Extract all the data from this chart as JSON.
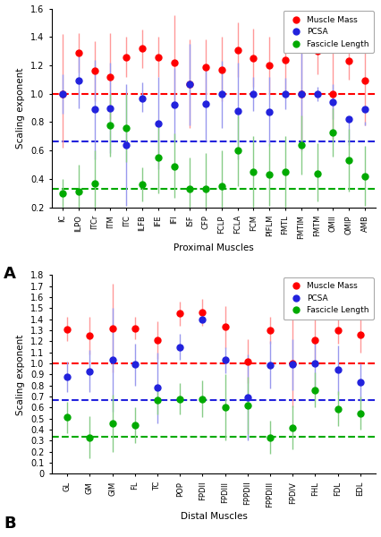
{
  "panel_A": {
    "xlabel": "Proximal Muscles",
    "ylabel": "Scaling exponent",
    "ylim": [
      0.2,
      1.6
    ],
    "yticks": [
      0.2,
      0.4,
      0.6,
      0.8,
      1.0,
      1.2,
      1.4,
      1.6
    ],
    "ytick_labels": [
      "0.2",
      "0.4",
      "0.6",
      "0.8",
      "1.0",
      "1.2",
      "1.4",
      "1.6"
    ],
    "label": "A",
    "categories": [
      "IC",
      "ILPO",
      "ITCr",
      "ITM",
      "ITC",
      "ILFB",
      "IFE",
      "IFI",
      "ISF",
      "CFP",
      "FCLP",
      "FCLA",
      "FCM",
      "PIFLM",
      "FMTL",
      "FMTIM",
      "FMTM",
      "OMII",
      "OMIP",
      "AMB"
    ],
    "red_mean": [
      1.0,
      1.29,
      1.16,
      1.12,
      1.26,
      1.32,
      1.26,
      1.22,
      1.07,
      1.19,
      1.17,
      1.31,
      1.25,
      1.2,
      1.24,
      1.0,
      1.3,
      1.0,
      1.23,
      1.09
    ],
    "red_upper": [
      1.42,
      1.43,
      1.37,
      1.43,
      1.4,
      1.45,
      1.4,
      1.55,
      1.38,
      1.38,
      1.4,
      1.5,
      1.46,
      1.4,
      1.52,
      1.42,
      1.47,
      1.35,
      1.37,
      1.4
    ],
    "red_lower": [
      0.62,
      1.15,
      0.95,
      0.82,
      1.12,
      1.18,
      1.12,
      0.9,
      0.76,
      1.0,
      0.95,
      1.12,
      1.05,
      1.0,
      0.97,
      0.6,
      1.14,
      0.68,
      1.1,
      0.78
    ],
    "blue_mean": [
      1.0,
      1.09,
      0.89,
      0.9,
      0.64,
      0.97,
      0.79,
      0.92,
      1.07,
      0.93,
      1.0,
      0.88,
      1.0,
      0.87,
      1.0,
      1.0,
      1.0,
      0.94,
      0.82,
      0.89
    ],
    "blue_upper": [
      1.14,
      1.28,
      1.24,
      1.22,
      1.07,
      1.08,
      1.12,
      1.18,
      1.35,
      1.2,
      1.23,
      1.22,
      1.12,
      1.12,
      1.11,
      1.42,
      1.05,
      1.07,
      0.8,
      0.8
    ],
    "blue_lower": [
      0.86,
      0.9,
      0.54,
      0.58,
      0.21,
      0.87,
      0.47,
      0.66,
      0.78,
      0.67,
      0.76,
      0.54,
      0.88,
      0.63,
      0.89,
      0.6,
      0.95,
      0.82,
      0.64,
      0.78
    ],
    "green_mean": [
      0.3,
      0.31,
      0.37,
      0.78,
      0.76,
      0.36,
      0.55,
      0.49,
      0.33,
      0.33,
      0.35,
      0.6,
      0.45,
      0.43,
      0.45,
      0.64,
      0.44,
      0.73,
      0.53,
      0.42
    ],
    "green_upper": [
      0.4,
      0.5,
      0.6,
      1.0,
      1.0,
      0.48,
      0.8,
      0.72,
      0.55,
      0.58,
      0.6,
      0.85,
      0.7,
      0.65,
      0.7,
      0.85,
      0.65,
      0.9,
      0.75,
      0.63
    ],
    "green_lower": [
      0.2,
      0.12,
      0.14,
      0.56,
      0.52,
      0.24,
      0.3,
      0.27,
      0.11,
      0.08,
      0.1,
      0.35,
      0.2,
      0.21,
      0.2,
      0.43,
      0.24,
      0.56,
      0.31,
      0.21
    ],
    "hline_red": 1.0,
    "hline_blue": 0.667,
    "hline_green": 0.333
  },
  "panel_B": {
    "xlabel": "Distal Muscles",
    "ylabel": "Scaling exponent",
    "ylim": [
      0.0,
      1.8
    ],
    "yticks": [
      0.0,
      0.1,
      0.2,
      0.3,
      0.4,
      0.5,
      0.6,
      0.7,
      0.8,
      0.9,
      1.0,
      1.1,
      1.2,
      1.3,
      1.4,
      1.5,
      1.6,
      1.7,
      1.8
    ],
    "ytick_labels": [
      "0",
      "0.1",
      "0.2",
      "0.3",
      "0.4",
      "0.5",
      "0.6",
      "0.7",
      "0.8",
      "0.9",
      "1.0",
      "1.1",
      "1.2",
      "1.3",
      "1.4",
      "1.5",
      "1.6",
      "1.7",
      "1.8"
    ],
    "label": "B",
    "categories": [
      "GL",
      "GM",
      "GIM",
      "FL",
      "TC",
      "POP",
      "FPDII",
      "FPDIII",
      "FPPDII",
      "FPPDIII",
      "FPDIV",
      "FHL",
      "FDL",
      "EDL"
    ],
    "red_mean": [
      1.31,
      1.25,
      1.32,
      1.32,
      1.21,
      1.45,
      1.46,
      1.33,
      1.02,
      1.3,
      1.0,
      1.21,
      1.3,
      1.26
    ],
    "red_upper": [
      1.42,
      1.42,
      1.72,
      1.42,
      1.38,
      1.56,
      1.58,
      1.52,
      1.22,
      1.42,
      1.4,
      1.42,
      1.42,
      1.42
    ],
    "red_lower": [
      1.2,
      1.08,
      0.92,
      1.22,
      1.04,
      1.34,
      1.34,
      1.14,
      0.82,
      1.18,
      0.6,
      1.0,
      1.18,
      1.1
    ],
    "blue_mean": [
      0.88,
      0.93,
      1.03,
      0.99,
      0.78,
      1.15,
      1.4,
      1.03,
      0.69,
      0.98,
      0.99,
      1.0,
      0.94,
      0.83
    ],
    "blue_upper": [
      1.02,
      1.12,
      1.5,
      1.18,
      1.1,
      1.27,
      1.42,
      1.15,
      1.08,
      1.2,
      1.22,
      1.22,
      1.16,
      1.0
    ],
    "blue_lower": [
      0.74,
      0.74,
      0.56,
      0.8,
      0.46,
      1.03,
      1.38,
      0.91,
      0.3,
      0.77,
      0.76,
      0.78,
      0.72,
      0.66
    ],
    "green_mean": [
      0.51,
      0.33,
      0.46,
      0.44,
      0.67,
      0.68,
      0.68,
      0.6,
      0.62,
      0.33,
      0.42,
      0.76,
      0.59,
      0.55
    ],
    "green_upper": [
      0.65,
      0.52,
      0.72,
      0.6,
      0.8,
      0.82,
      0.85,
      0.9,
      0.88,
      0.48,
      0.62,
      0.92,
      0.75,
      0.7
    ],
    "green_lower": [
      0.37,
      0.14,
      0.2,
      0.28,
      0.54,
      0.54,
      0.51,
      0.3,
      0.36,
      0.18,
      0.22,
      0.6,
      0.43,
      0.4
    ],
    "hline_red": 1.0,
    "hline_blue": 0.667,
    "hline_green": 0.333
  },
  "colors": {
    "red": "#FF0000",
    "blue": "#2222DD",
    "green": "#00AA00",
    "red_err": "#FF9999",
    "blue_err": "#9999EE",
    "green_err": "#88CC88"
  },
  "marker_size": 5,
  "err_linewidth": 1.0,
  "hline_linewidth": 1.5
}
